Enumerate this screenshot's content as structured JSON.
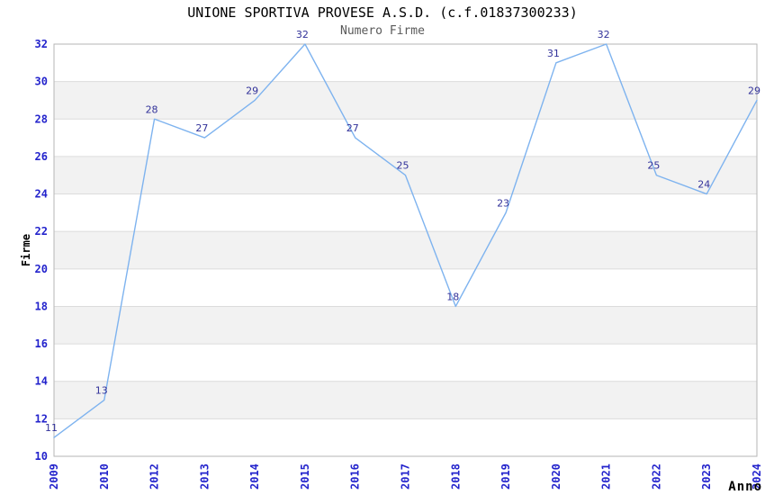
{
  "chart_data": {
    "type": "line",
    "title": "UNIONE SPORTIVA PROVESE A.S.D. (c.f.01837300233)",
    "subtitle": "Numero Firme",
    "xlabel": "Anno",
    "ylabel": "Firme",
    "categories": [
      "2009",
      "2010",
      "2012",
      "2013",
      "2014",
      "2015",
      "2016",
      "2017",
      "2018",
      "2019",
      "2020",
      "2021",
      "2022",
      "2023",
      "2024"
    ],
    "values": [
      11,
      13,
      28,
      27,
      29,
      32,
      27,
      25,
      18,
      23,
      31,
      32,
      25,
      24,
      29
    ],
    "ylim": [
      10,
      32
    ],
    "ytick_step": 2,
    "grid": true,
    "band_fill": true,
    "legend": "none",
    "colors": {
      "line": "#7eb3ef",
      "tick_label": "#2323cc",
      "point_label": "#32329a",
      "band": "#f2f2f2",
      "gridline": "#dcdcdc",
      "border": "#b6b6b6",
      "title": "#000000",
      "subtitle": "#595959",
      "axis_title": "#000000",
      "background": "#ffffff"
    }
  }
}
